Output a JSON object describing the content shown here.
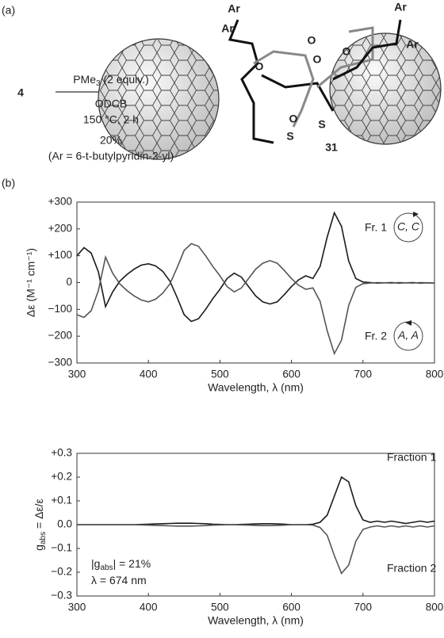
{
  "scheme": {
    "panel_label": "(a)",
    "reactant": "4",
    "reagent": [
      "PMe",
      "3",
      " (2 equiv.)"
    ],
    "solvent": "ODCB",
    "conditions": "150 °C, 2 h",
    "yield": "20%",
    "note": "(Ar = 6-t-butylpyridin-2-yl)",
    "product": "31",
    "molecule_labels": [
      "Ar",
      "Ar",
      "Ar",
      "Ar",
      "O",
      "O",
      "O",
      "O",
      "O",
      "S",
      "S"
    ]
  },
  "panel_b_label": "(b)",
  "chart_data": [
    {
      "type": "line",
      "xlabel": "Wavelength, λ (nm)",
      "ylabel": "Δε (M⁻¹ cm⁻¹)",
      "x": [
        300,
        310,
        320,
        330,
        340,
        350,
        360,
        370,
        380,
        390,
        400,
        410,
        420,
        430,
        440,
        450,
        460,
        470,
        480,
        490,
        500,
        510,
        520,
        530,
        540,
        550,
        560,
        570,
        580,
        590,
        600,
        610,
        620,
        630,
        640,
        650,
        660,
        670,
        680,
        690,
        700,
        710,
        720,
        730,
        740,
        750,
        760,
        770,
        780,
        790,
        800
      ],
      "xlim": [
        300,
        800
      ],
      "xticks": [
        300,
        400,
        500,
        600,
        700,
        800
      ],
      "ylim": [
        -300,
        300
      ],
      "yticks": [
        {
          "value": 300,
          "label": "+300"
        },
        {
          "value": 200,
          "label": "+200"
        },
        {
          "value": 100,
          "label": "+100"
        },
        0,
        {
          "value": -100,
          "label": "−100"
        },
        {
          "value": -200,
          "label": "−200"
        },
        {
          "value": -300,
          "label": "−300"
        }
      ],
      "series": [
        {
          "name": "Fr. 1",
          "configuration": "C, C",
          "color": "#1a1a1a",
          "values": [
            100,
            130,
            110,
            40,
            -90,
            -35,
            5,
            30,
            50,
            65,
            70,
            62,
            42,
            5,
            -55,
            -120,
            -145,
            -135,
            -100,
            -60,
            -25,
            15,
            35,
            20,
            -15,
            -50,
            -72,
            -80,
            -72,
            -45,
            -15,
            10,
            25,
            15,
            60,
            170,
            260,
            210,
            80,
            15,
            2,
            0,
            -2,
            -1,
            0,
            -2,
            -1,
            0,
            -2,
            -1,
            -2
          ]
        },
        {
          "name": "Fr. 2",
          "configuration": "A, A",
          "color": "#555555",
          "values": [
            -120,
            -130,
            -105,
            -30,
            95,
            35,
            -5,
            -30,
            -50,
            -65,
            -72,
            -62,
            -40,
            -5,
            55,
            120,
            145,
            135,
            100,
            60,
            25,
            -15,
            -35,
            -20,
            15,
            50,
            72,
            82,
            72,
            45,
            15,
            -10,
            -25,
            -20,
            -70,
            -180,
            -265,
            -215,
            -85,
            -18,
            -4,
            -2,
            0,
            -1,
            -2,
            0,
            -1,
            -2,
            0,
            -1,
            -2
          ]
        }
      ]
    },
    {
      "type": "line",
      "xlabel": "Wavelength, λ (nm)",
      "ylabel": [
        "g",
        "abs",
        " = Δε/ε"
      ],
      "annotations": [
        [
          "|g",
          "abs",
          "| = 21%"
        ],
        [
          "λ = 674 nm"
        ]
      ],
      "x": [
        300,
        310,
        320,
        330,
        340,
        350,
        360,
        370,
        380,
        390,
        400,
        410,
        420,
        430,
        440,
        450,
        460,
        470,
        480,
        490,
        500,
        510,
        520,
        530,
        540,
        550,
        560,
        570,
        580,
        590,
        600,
        610,
        620,
        630,
        640,
        650,
        660,
        670,
        680,
        690,
        700,
        710,
        720,
        730,
        740,
        750,
        760,
        770,
        780,
        790,
        800
      ],
      "xlim": [
        300,
        800
      ],
      "xticks": [
        300,
        400,
        500,
        600,
        700,
        800
      ],
      "ylim": [
        -0.3,
        0.3
      ],
      "yticks": [
        {
          "value": 0.3,
          "label": "+0.3"
        },
        {
          "value": 0.2,
          "label": "+0.2"
        },
        {
          "value": 0.1,
          "label": "+0.1"
        },
        {
          "value": 0,
          "label": "0.0"
        },
        {
          "value": -0.1,
          "label": "−0.1"
        },
        {
          "value": -0.2,
          "label": "−0.2"
        },
        {
          "value": -0.3,
          "label": "−0.3"
        }
      ],
      "series": [
        {
          "name": "Fraction 1",
          "color": "#1a1a1a",
          "values": [
            0,
            0,
            0,
            0,
            0,
            0,
            0,
            0,
            0,
            0.001,
            0.002,
            0.003,
            0.004,
            0.005,
            0.006,
            0.006,
            0.006,
            0.005,
            0.004,
            0.002,
            0.001,
            0,
            0,
            0.001,
            0.002,
            0.003,
            0.004,
            0.004,
            0.003,
            0.002,
            0,
            0,
            0,
            0.002,
            0.01,
            0.04,
            0.12,
            0.2,
            0.18,
            0.08,
            0.02,
            0.01,
            0.015,
            0.01,
            0.015,
            0.01,
            0.005,
            0.01,
            0.015,
            0.01,
            0.015
          ]
        },
        {
          "name": "Fraction 2",
          "color": "#555555",
          "values": [
            0,
            0,
            0,
            0,
            0,
            0,
            0,
            0,
            0,
            -0.001,
            -0.002,
            -0.003,
            -0.004,
            -0.005,
            -0.006,
            -0.006,
            -0.006,
            -0.005,
            -0.004,
            -0.002,
            -0.001,
            0,
            0,
            -0.001,
            -0.002,
            -0.003,
            -0.004,
            -0.004,
            -0.003,
            -0.002,
            0,
            0,
            0,
            -0.002,
            -0.012,
            -0.045,
            -0.13,
            -0.205,
            -0.17,
            -0.07,
            -0.02,
            -0.01,
            -0.005,
            -0.01,
            -0.005,
            -0.01,
            -0.005,
            -0.01,
            -0.005,
            -0.01,
            -0.005
          ]
        }
      ]
    }
  ]
}
